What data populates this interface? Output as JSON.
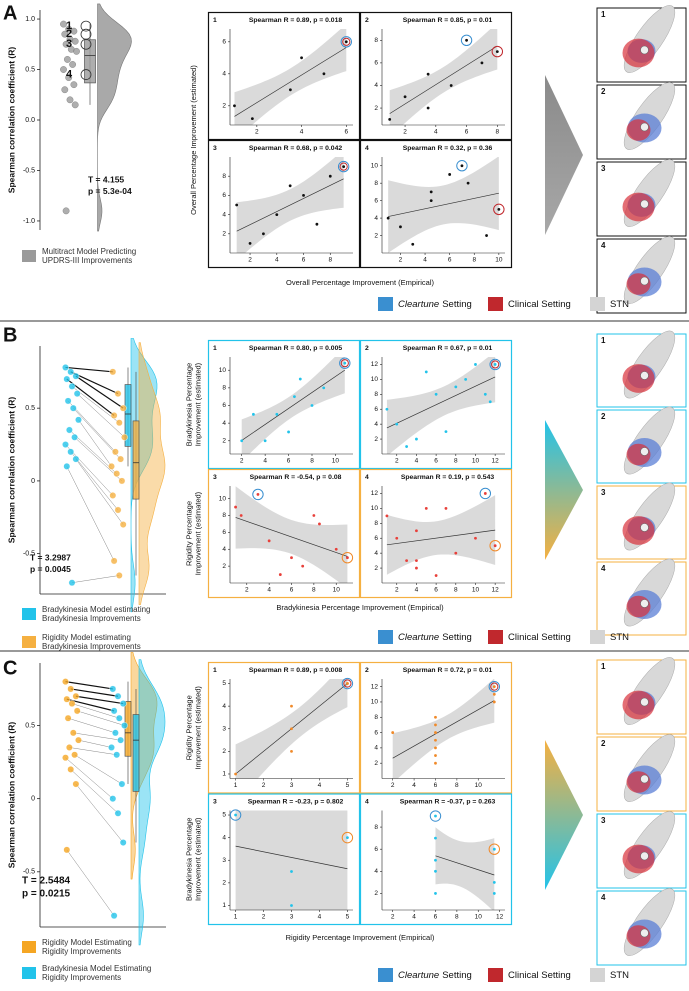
{
  "setting_legend": [
    {
      "emphasis": "Cleartune",
      "rest": "Setting",
      "color": "#3a8fd0"
    },
    {
      "emphasis": "",
      "rest": "Clinical Setting",
      "color": "#c0282d"
    },
    {
      "emphasis": "",
      "rest": "STN",
      "color": "#d4d4d4"
    }
  ],
  "panels": [
    {
      "label": "A",
      "violin": {
        "type": "violin",
        "y_axis_label": "Spearman correlation coefficient (R)",
        "ylim": [
          -1.05,
          1.05
        ],
        "yticks": [
          {
            "value": 1.0,
            "label": "1.0"
          },
          {
            "value": 0.5,
            "label": "0.5"
          },
          {
            "value": 0.0,
            "label": "0.0"
          },
          {
            "value": -0.5,
            "label": "-0.5"
          },
          {
            "value": -1.0,
            "label": "-1.0"
          }
        ],
        "groups": [
          {
            "name": [
              "Multitract Model Predicting",
              "UPDRS-III Improvements"
            ],
            "color": "#9a9a9a",
            "values": [
              0.95,
              0.9,
              0.88,
              0.85,
              0.8,
              0.78,
              0.75,
              0.7,
              0.68,
              0.6,
              0.55,
              0.5,
              0.42,
              0.35,
              0.3,
              0.2,
              0.15,
              -0.9
            ]
          }
        ],
        "annotations": [
          {
            "label": "1",
            "value": 0.93
          },
          {
            "label": "2",
            "value": 0.85
          },
          {
            "label": "3",
            "value": 0.75
          },
          {
            "label": "4",
            "value": 0.45
          }
        ],
        "stats": [
          "T = 4.155",
          "p = 5.3e-04"
        ]
      },
      "y_axis_labels": [
        [
          "Overall Percentage Improvement (estimated)"
        ]
      ],
      "x_axis_label": "Overall Percentage Improvement (Empirical)",
      "arrow_colors": [
        "#8a8a8a",
        "#a8a8a8"
      ],
      "image_frame_colors": [
        "#111111",
        "#111111",
        "#111111",
        "#111111"
      ],
      "images": [
        "1",
        "2",
        "3",
        "4"
      ],
      "scatters": [
        {
          "type": "scatter",
          "number": "1",
          "title": "Spearman R = 0.89, p = 0.018",
          "color": "#111111",
          "frame_color": "#111111",
          "x": [
            1,
            1.8,
            3.5,
            4,
            5,
            6
          ],
          "values": [
            2,
            1.2,
            3,
            5,
            4,
            6
          ],
          "xlim": [
            0.8,
            6.3
          ],
          "ylim": [
            0.8,
            6.8
          ],
          "xticks": [
            2,
            4,
            6
          ],
          "yticks": [
            2,
            4,
            6
          ],
          "highlights": [
            {
              "index": 5,
              "color": "#3a8fd0"
            },
            {
              "index": 5,
              "color": "#c0282d"
            }
          ]
        },
        {
          "type": "scatter",
          "number": "2",
          "title": "Spearman R = 0.85, p = 0.01",
          "color": "#111111",
          "frame_color": "#111111",
          "x": [
            1,
            2,
            3.5,
            3.5,
            5,
            6,
            7,
            8
          ],
          "values": [
            1,
            3,
            5,
            2,
            4,
            8,
            6,
            7
          ],
          "xlim": [
            0.5,
            8.5
          ],
          "ylim": [
            0.5,
            9
          ],
          "xticks": [
            2,
            4,
            6,
            8
          ],
          "yticks": [
            2,
            4,
            6,
            8
          ],
          "highlights": [
            {
              "index": 5,
              "color": "#3a8fd0"
            },
            {
              "index": 7,
              "color": "#c0282d"
            }
          ]
        },
        {
          "type": "scatter",
          "number": "3",
          "title": "Spearman R = 0.68, p = 0.042",
          "color": "#111111",
          "frame_color": "#111111",
          "x": [
            1,
            2,
            3,
            4,
            5,
            6,
            7,
            8,
            9
          ],
          "values": [
            5,
            1,
            2,
            4,
            7,
            6,
            3,
            8,
            9
          ],
          "xlim": [
            0.5,
            9.7
          ],
          "ylim": [
            0,
            10
          ],
          "xticks": [
            2,
            4,
            6,
            8
          ],
          "yticks": [
            2,
            4,
            6,
            8
          ],
          "highlights": [
            {
              "index": 8,
              "color": "#3a8fd0"
            },
            {
              "index": 8,
              "color": "#c0282d"
            }
          ]
        },
        {
          "type": "scatter",
          "number": "4",
          "title": "Spearman R = 0.32, p = 0.36",
          "color": "#111111",
          "frame_color": "#111111",
          "x": [
            1,
            2,
            3,
            4.5,
            4.5,
            6,
            7,
            7.5,
            9,
            10
          ],
          "values": [
            4,
            3,
            1,
            7,
            6,
            9,
            10,
            8,
            2,
            5
          ],
          "xlim": [
            0.5,
            10.5
          ],
          "ylim": [
            0,
            11
          ],
          "xticks": [
            2,
            4,
            6,
            8,
            10
          ],
          "yticks": [
            2,
            4,
            6,
            8,
            10
          ],
          "highlights": [
            {
              "index": 6,
              "color": "#3a8fd0"
            },
            {
              "index": 9,
              "color": "#c0282d"
            }
          ]
        }
      ]
    },
    {
      "label": "B",
      "violin": {
        "type": "violin",
        "y_axis_label": "Spearman correlation coefficient (R)",
        "ylim": [
          -0.75,
          0.9
        ],
        "yticks": [
          0.5,
          0,
          -0.5
        ],
        "groups": [
          {
            "name": [
              "Bradykinesia Model estimating",
              "Bradykinesia Improvements"
            ],
            "color": "#22c3ea",
            "values": [
              0.78,
              0.75,
              0.72,
              0.7,
              0.65,
              0.6,
              0.55,
              0.5,
              0.42,
              0.35,
              0.3,
              0.25,
              0.2,
              0.15,
              0.1,
              -0.7
            ]
          },
          {
            "name": [
              "Rigidity Model estimating",
              "Bradykinesia Improvements"
            ],
            "color": "#f5b041",
            "values": [
              0.75,
              0.6,
              0.5,
              0.45,
              0.4,
              0.3,
              0.2,
              0.15,
              0.1,
              0.05,
              0,
              -0.1,
              -0.2,
              -0.3,
              -0.55,
              -0.65
            ]
          }
        ],
        "annotations": [],
        "stats": [
          "T = 3.2987",
          "p = 0.0045"
        ]
      },
      "y_axis_labels": [
        [
          "Bradykinesia Percentage",
          "Improvement (estimated)"
        ],
        [
          "Rigidity Percentage",
          "Improvement (estimated)"
        ]
      ],
      "x_axis_label": "Bradykinesia Percentage Improvement (Empirical)",
      "arrow_colors": [
        "#22c3ea",
        "#f5b041"
      ],
      "image_frame_colors": [
        "#22c3ea",
        "#22c3ea",
        "#f5b041",
        "#f5b041"
      ],
      "images": [
        "1",
        "2",
        "3",
        "4"
      ],
      "scatters": [
        {
          "type": "scatter",
          "number": "1",
          "title": "Spearman R = 0.80, p = 0.005",
          "color": "#22c3ea",
          "frame_color": "#22c3ea",
          "x": [
            2,
            3,
            4,
            5,
            6,
            6.5,
            7,
            8,
            9,
            10.8
          ],
          "values": [
            2,
            5,
            2,
            5,
            3,
            7,
            9,
            6,
            8,
            10.8
          ],
          "xlim": [
            1,
            11.5
          ],
          "ylim": [
            0.5,
            11.5
          ],
          "xticks": [
            2,
            4,
            6,
            8,
            10
          ],
          "yticks": [
            2,
            4,
            6,
            8,
            10
          ],
          "highlights": [
            {
              "index": 9,
              "color": "#3a8fd0"
            },
            {
              "index": 9,
              "color": "#c0282d"
            }
          ]
        },
        {
          "type": "scatter",
          "number": "2",
          "title": "Spearman R = 0.67, p = 0.01",
          "color": "#22c3ea",
          "frame_color": "#22c3ea",
          "x": [
            1,
            2,
            3,
            4,
            5,
            6,
            7,
            8,
            9,
            10,
            11,
            11.5,
            12
          ],
          "values": [
            6,
            4,
            1,
            2,
            11,
            8,
            3,
            9,
            10,
            12,
            8,
            7,
            12
          ],
          "xlim": [
            0.5,
            13
          ],
          "ylim": [
            0,
            13
          ],
          "xticks": [
            2,
            4,
            6,
            8,
            10,
            12
          ],
          "yticks": [
            2,
            4,
            6,
            8,
            10,
            12
          ],
          "highlights": [
            {
              "index": 12,
              "color": "#3a8fd0"
            },
            {
              "index": 12,
              "color": "#c0282d"
            }
          ]
        },
        {
          "type": "scatter",
          "number": "3",
          "title": "Spearman R = -0.54, p = 0.08",
          "color": "#e8403a",
          "frame_color": "#f5b041",
          "x": [
            1,
            1.5,
            3,
            4,
            5,
            6,
            7,
            8,
            8.5,
            10,
            11
          ],
          "values": [
            9,
            8,
            10.5,
            5,
            1,
            3,
            2,
            8,
            7,
            4,
            3
          ],
          "xlim": [
            0.5,
            11.5
          ],
          "ylim": [
            0,
            11.5
          ],
          "xticks": [
            2,
            4,
            6,
            8,
            10
          ],
          "yticks": [
            2,
            4,
            6,
            8,
            10
          ],
          "highlights": [
            {
              "index": 2,
              "color": "#3a8fd0"
            },
            {
              "index": 10,
              "color": "#f08a2a"
            }
          ]
        },
        {
          "type": "scatter",
          "number": "4",
          "title": "Spearman R = 0.19, p = 0.543",
          "color": "#e8403a",
          "frame_color": "#f5b041",
          "x": [
            1,
            2,
            3,
            4,
            4,
            4,
            5,
            6,
            7,
            8,
            10,
            11,
            12
          ],
          "values": [
            9,
            6,
            3,
            2,
            3,
            7,
            10,
            1,
            10,
            4,
            6,
            12,
            5
          ],
          "xlim": [
            0.5,
            13
          ],
          "ylim": [
            0,
            13
          ],
          "xticks": [
            2,
            4,
            6,
            8,
            10,
            12
          ],
          "yticks": [
            2,
            4,
            6,
            8,
            10,
            12
          ],
          "highlights": [
            {
              "index": 11,
              "color": "#3a8fd0"
            },
            {
              "index": 12,
              "color": "#f08a2a"
            }
          ]
        }
      ]
    },
    {
      "label": "C",
      "violin": {
        "type": "violin",
        "y_axis_label": "Spearman correlation coefficient (R)",
        "ylim": [
          -0.85,
          0.9
        ],
        "yticks": [
          0.5,
          0,
          -0.5
        ],
        "groups": [
          {
            "name": [
              "Rigidity Model Estimating",
              "Rigidity Improvements"
            ],
            "color": "#f5a623",
            "values": [
              0.8,
              0.75,
              0.7,
              0.68,
              0.65,
              0.6,
              0.55,
              0.45,
              0.4,
              0.35,
              0.3,
              0.28,
              0.2,
              0.1,
              -0.35
            ]
          },
          {
            "name": [
              "Bradykinesia Model Estimating",
              "Rigidity Improvements"
            ],
            "color": "#22c3ea",
            "values": [
              0.75,
              0.7,
              0.65,
              0.6,
              0.55,
              0.5,
              0.45,
              0.4,
              0.35,
              0.3,
              0.1,
              0,
              -0.1,
              -0.3,
              -0.8
            ]
          }
        ],
        "annotations": [],
        "stats": [
          "T = 2.5484",
          "p = 0.0215"
        ]
      },
      "y_axis_labels": [
        [
          "Rigidity Percentage",
          "Improvement (estimated)"
        ],
        [
          "Bradykinesia Percentage",
          "Improvement (estimated)"
        ]
      ],
      "x_axis_label": "Rigidity Percentage Improvement (Empirical)",
      "arrow_colors": [
        "#f5b041",
        "#22c3ea"
      ],
      "image_frame_colors": [
        "#f5b041",
        "#f5b041",
        "#22c3ea",
        "#22c3ea"
      ],
      "images": [
        "1",
        "2",
        "3",
        "4"
      ],
      "scatters": [
        {
          "type": "scatter",
          "number": "1",
          "title": "Spearman R = 0.89, p = 0.008",
          "color": "#f08a2a",
          "frame_color": "#f5b041",
          "x": [
            1,
            3,
            3,
            3,
            5,
            5
          ],
          "values": [
            1,
            4,
            3,
            2,
            5,
            5
          ],
          "xlim": [
            0.8,
            5.2
          ],
          "ylim": [
            0.8,
            5.2
          ],
          "xticks": [
            1,
            2,
            3,
            4,
            5
          ],
          "yticks": [
            1,
            2,
            3,
            4,
            5
          ],
          "highlights": [
            {
              "index": 5,
              "color": "#3a8fd0"
            },
            {
              "index": 5,
              "color": "#c0282d"
            }
          ]
        },
        {
          "type": "scatter",
          "number": "2",
          "title": "Spearman R = 0.72, p = 0.01",
          "color": "#f08a2a",
          "frame_color": "#f5b041",
          "x": [
            2,
            6,
            6,
            6,
            6,
            6,
            6,
            6,
            11.5,
            11.5,
            11.5
          ],
          "values": [
            6,
            8,
            7,
            6,
            5,
            4,
            3,
            2,
            11,
            10,
            12
          ],
          "xlim": [
            1,
            12.5
          ],
          "ylim": [
            0,
            13
          ],
          "xticks": [
            2,
            4,
            6,
            8,
            10
          ],
          "yticks": [
            2,
            4,
            6,
            8,
            10,
            12
          ],
          "highlights": [
            {
              "index": 10,
              "color": "#3a8fd0"
            },
            {
              "index": 10,
              "color": "#c0282d"
            }
          ]
        },
        {
          "type": "scatter",
          "number": "3",
          "title": "Spearman R = -0.23, p = 0.802",
          "color": "#22c3ea",
          "frame_color": "#22c3ea",
          "x": [
            1,
            3,
            3,
            5
          ],
          "values": [
            5,
            2.5,
            1,
            4
          ],
          "xlim": [
            0.8,
            5.2
          ],
          "ylim": [
            0.8,
            5.2
          ],
          "xticks": [
            1,
            2,
            3,
            4,
            5
          ],
          "yticks": [
            1,
            2,
            3,
            4,
            5
          ],
          "highlights": [
            {
              "index": 0,
              "color": "#3a8fd0"
            },
            {
              "index": 3,
              "color": "#f08a2a"
            }
          ]
        },
        {
          "type": "scatter",
          "number": "4",
          "title": "Spearman R = -0.37, p = 0.263",
          "color": "#22c3ea",
          "frame_color": "#22c3ea",
          "x": [
            6,
            6,
            6,
            6,
            6,
            11.5,
            11.5,
            11.5
          ],
          "values": [
            9,
            7,
            5,
            4,
            2,
            6,
            3,
            2
          ],
          "xlim": [
            1,
            12.5
          ],
          "ylim": [
            0.5,
            9.5
          ],
          "xticks": [
            2,
            4,
            6,
            8,
            10,
            12
          ],
          "yticks": [
            2,
            4,
            6,
            8
          ],
          "highlights": [
            {
              "index": 0,
              "color": "#3a8fd0"
            },
            {
              "index": 5,
              "color": "#f08a2a"
            }
          ]
        }
      ]
    }
  ]
}
